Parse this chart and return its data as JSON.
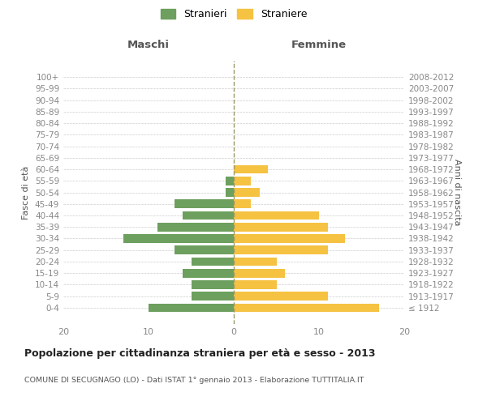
{
  "age_groups": [
    "100+",
    "95-99",
    "90-94",
    "85-89",
    "80-84",
    "75-79",
    "70-74",
    "65-69",
    "60-64",
    "55-59",
    "50-54",
    "45-49",
    "40-44",
    "35-39",
    "30-34",
    "25-29",
    "20-24",
    "15-19",
    "10-14",
    "5-9",
    "0-4"
  ],
  "birth_years": [
    "≤ 1912",
    "1913-1917",
    "1918-1922",
    "1923-1927",
    "1928-1932",
    "1933-1937",
    "1938-1942",
    "1943-1947",
    "1948-1952",
    "1953-1957",
    "1958-1962",
    "1963-1967",
    "1968-1972",
    "1973-1977",
    "1978-1982",
    "1983-1987",
    "1988-1992",
    "1993-1997",
    "1998-2002",
    "2003-2007",
    "2008-2012"
  ],
  "maschi": [
    0,
    0,
    0,
    0,
    0,
    0,
    0,
    0,
    0,
    1,
    1,
    7,
    6,
    9,
    13,
    7,
    5,
    6,
    5,
    5,
    10
  ],
  "femmine": [
    0,
    0,
    0,
    0,
    0,
    0,
    0,
    0,
    4,
    2,
    3,
    2,
    10,
    11,
    13,
    11,
    5,
    6,
    5,
    11,
    17
  ],
  "maschi_color": "#6d9f5e",
  "femmine_color": "#f5c242",
  "background_color": "#ffffff",
  "grid_color": "#cccccc",
  "title": "Popolazione per cittadinanza straniera per età e sesso - 2013",
  "subtitle": "COMUNE DI SECUGNAGO (LO) - Dati ISTAT 1° gennaio 2013 - Elaborazione TUTTITALIA.IT",
  "ylabel_left": "Fasce di età",
  "ylabel_right": "Anni di nascita",
  "header_maschi": "Maschi",
  "header_femmine": "Femmine",
  "legend_maschi": "Stranieri",
  "legend_femmine": "Straniere",
  "xlim": 20,
  "bar_height": 0.75
}
